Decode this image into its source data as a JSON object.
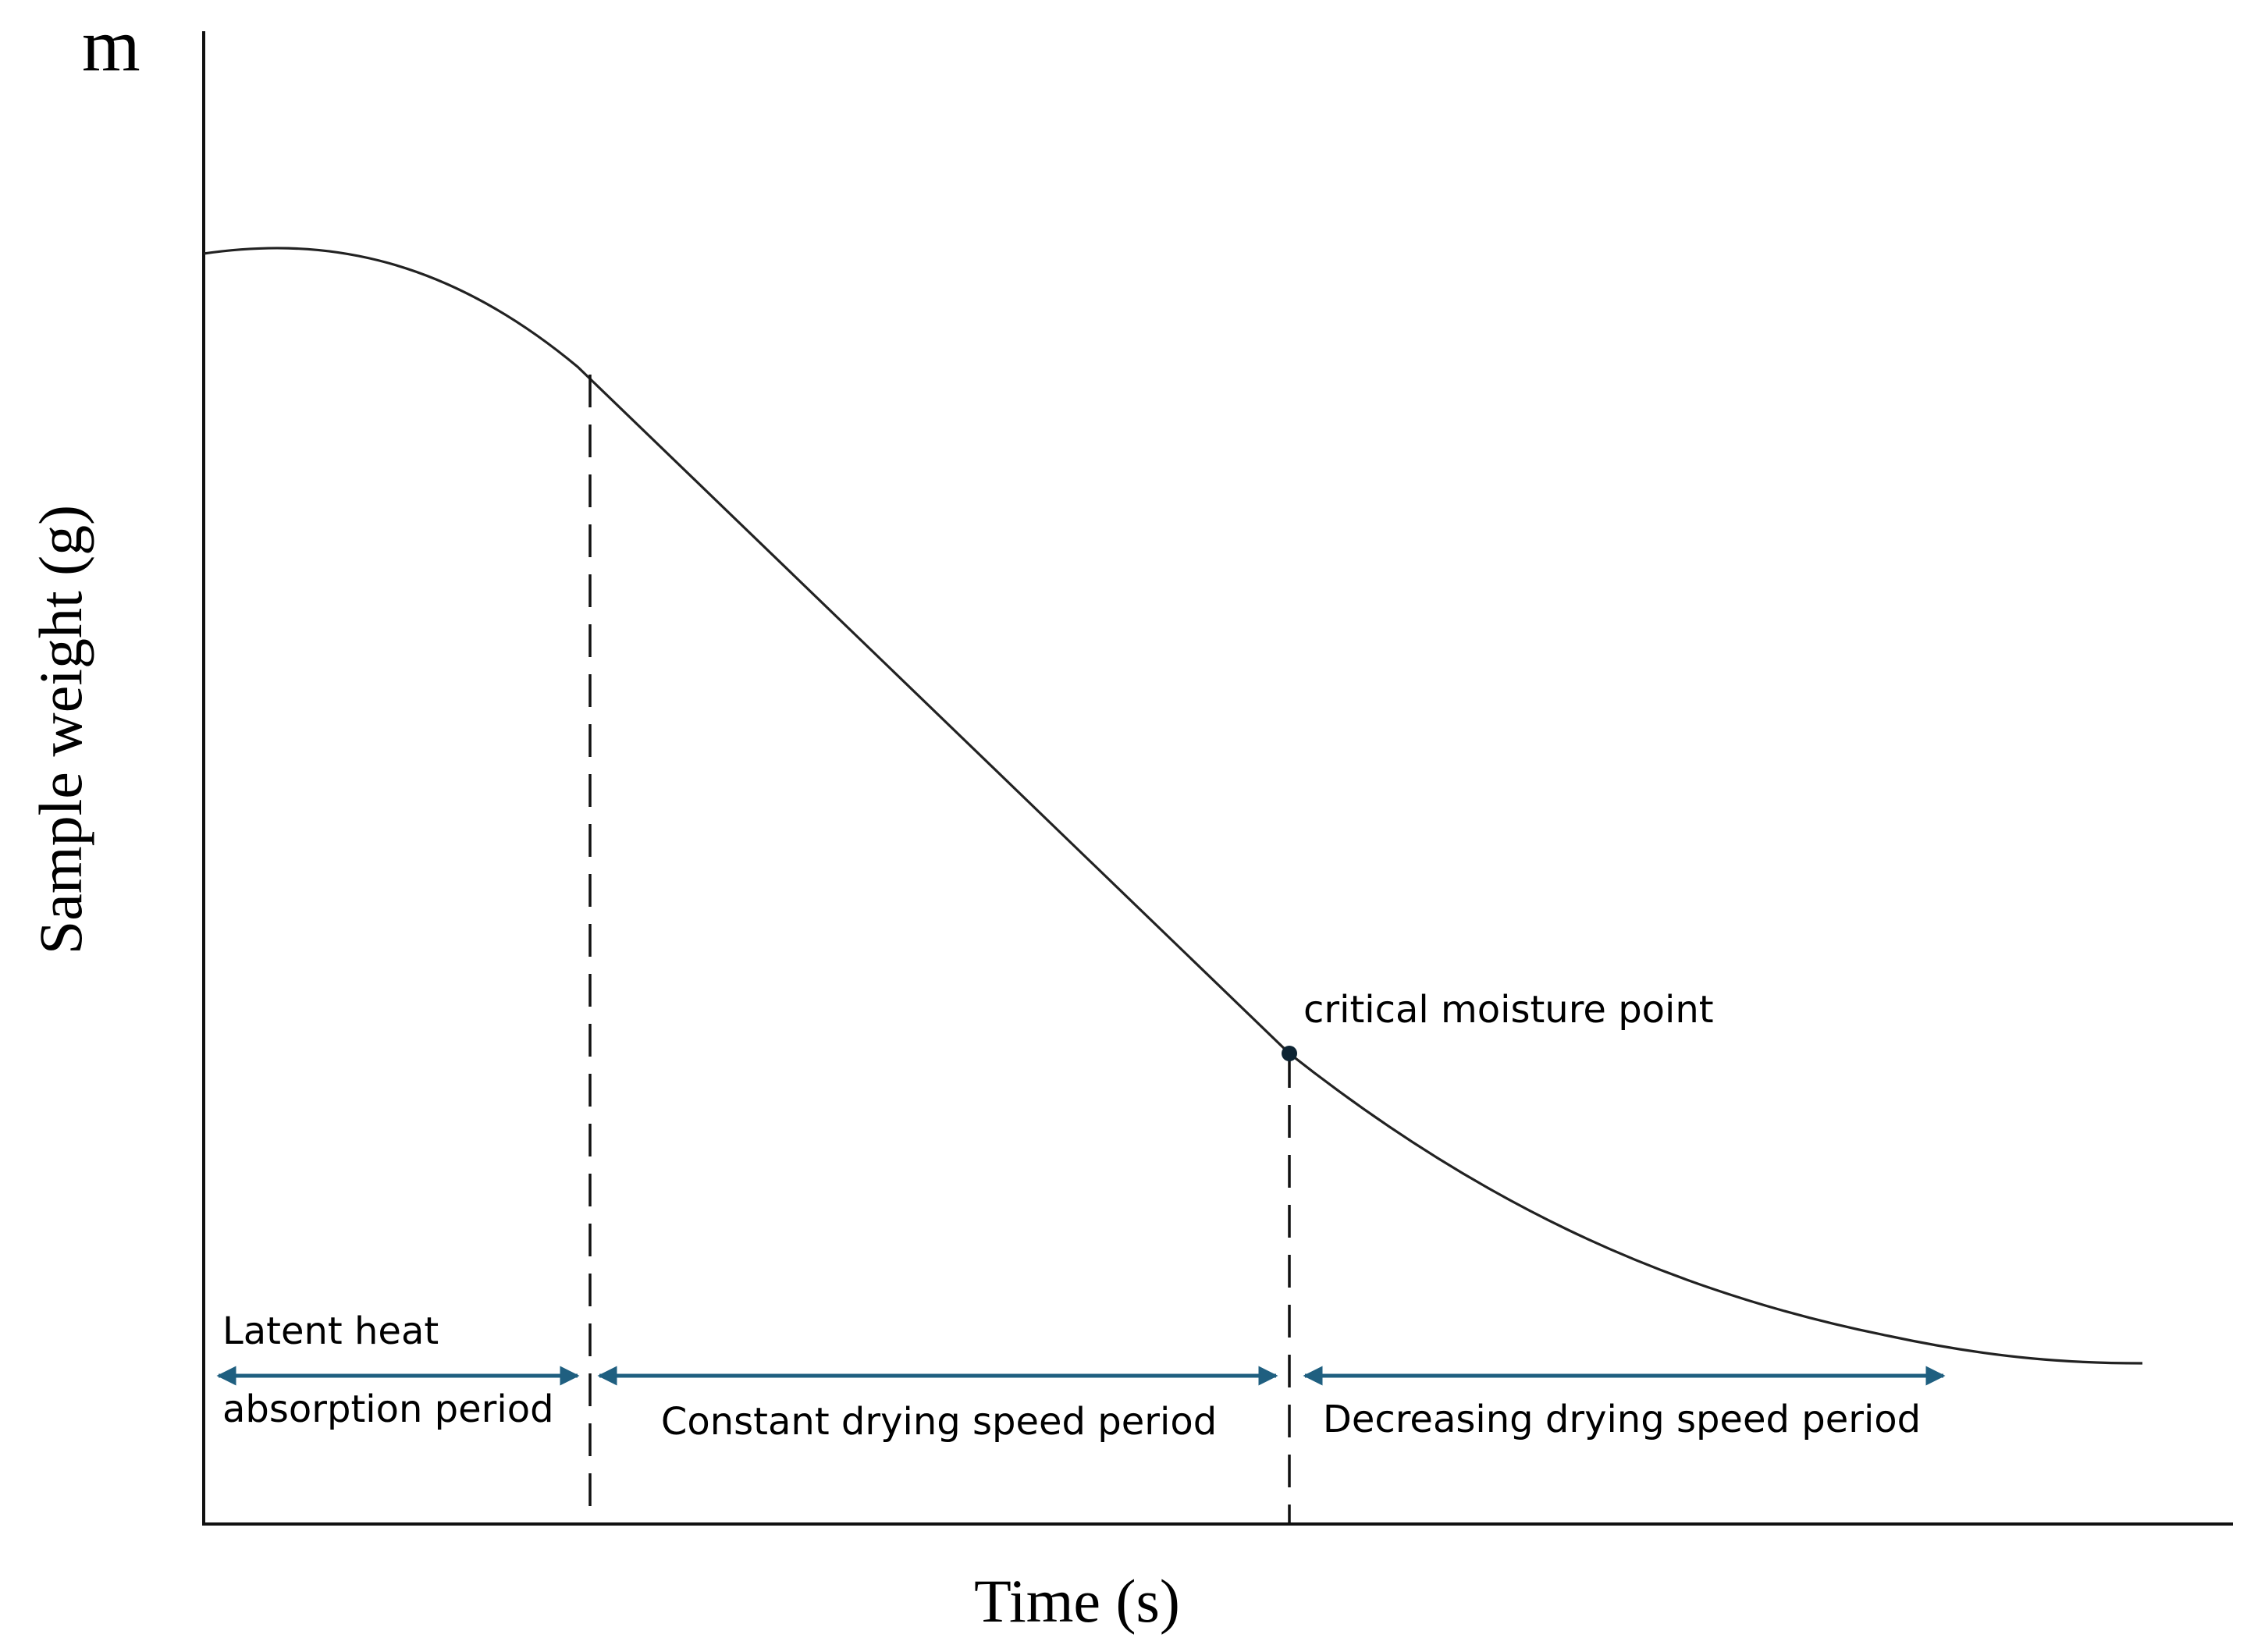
{
  "diagram": {
    "y_axis_symbol": "m",
    "y_axis_label": "Sample weight (g)",
    "x_axis_label": "Time (s)",
    "point_label": "critical moisture point",
    "periods": [
      {
        "label_line1": "Latent heat",
        "label_line2": "absorption period"
      },
      {
        "label_line1": "Constant drying speed period",
        "label_line2": ""
      },
      {
        "label_line1": "Decreasing drying speed period",
        "label_line2": ""
      }
    ],
    "colors": {
      "curve": "#222222",
      "axis": "#111111",
      "arrow": "#1f5f80",
      "point": "#0d2433"
    }
  }
}
